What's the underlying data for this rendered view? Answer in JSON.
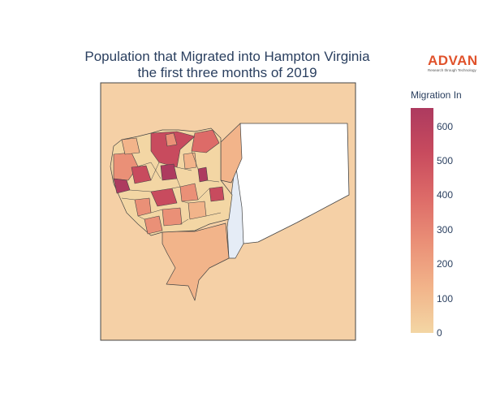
{
  "title": {
    "line1": "Population that Migrated into Hampton Virginia",
    "line2": "the first three months of 2019"
  },
  "logo": {
    "word": "ADVAN",
    "tagline": "Research through Technology",
    "color": "#e0522b"
  },
  "map": {
    "background_color": "#f5d0a6",
    "outline_color": "#444444",
    "water_color": "#e5ecf6",
    "blank_region_color": "#ffffff"
  },
  "colorbar": {
    "title": "Migration In",
    "min": 0,
    "max": 630,
    "ticks": [
      "600",
      "500",
      "400",
      "300",
      "200",
      "100",
      "0"
    ],
    "tick_values": [
      600,
      500,
      400,
      300,
      200,
      100,
      0
    ],
    "colorscale": [
      "#f3d6a4",
      "#f2b48a",
      "#ea9077",
      "#dd6b68",
      "#c84b5e",
      "#ad3a5f"
    ]
  }
}
